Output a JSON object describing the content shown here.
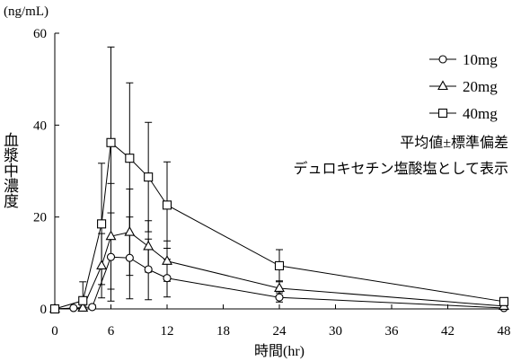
{
  "chart_data": {
    "type": "line",
    "xlabel": "時間(hr)",
    "ylabel": "血漿中濃度",
    "y_unit": "(ng/mL)",
    "xlim": [
      0,
      48
    ],
    "ylim": [
      0,
      60
    ],
    "x_ticks": [
      0,
      6,
      12,
      18,
      24,
      30,
      36,
      42,
      48
    ],
    "y_ticks": [
      0,
      20,
      40,
      60
    ],
    "grid": false,
    "legend_position": "top-right",
    "annotations": [
      "平均値±標準偏差",
      "デュロキセチン塩酸塩として表示"
    ],
    "series": [
      {
        "name": "10mg",
        "marker": "circle",
        "color": "#000000",
        "x": [
          0,
          2,
          4,
          6,
          8,
          10,
          12,
          24,
          48
        ],
        "y": [
          0,
          0.2,
          0.4,
          11.3,
          11.1,
          8.6,
          6.7,
          2.5,
          0.2
        ],
        "sd": [
          0,
          0.2,
          0.5,
          9.6,
          8.9,
          6.6,
          4.1,
          1.0,
          0.3
        ]
      },
      {
        "name": "20mg",
        "marker": "triangle",
        "color": "#000000",
        "x": [
          0,
          3,
          5,
          6,
          8,
          10,
          12,
          24,
          48
        ],
        "y": [
          0,
          0.2,
          9.4,
          15.8,
          16.7,
          13.6,
          10.4,
          4.5,
          0.6
        ],
        "sd": [
          0,
          0.4,
          7.0,
          11.5,
          9.4,
          5.6,
          4.4,
          1.6,
          0.4
        ]
      },
      {
        "name": "40mg",
        "marker": "square",
        "color": "#000000",
        "x": [
          0,
          3,
          5,
          6,
          8,
          10,
          12,
          24,
          48
        ],
        "y": [
          0,
          1.8,
          18.5,
          36.2,
          32.8,
          28.7,
          22.6,
          9.4,
          1.6
        ],
        "sd": [
          0,
          4.1,
          13.2,
          20.8,
          16.4,
          11.9,
          9.4,
          3.5,
          0.6
        ]
      }
    ]
  }
}
